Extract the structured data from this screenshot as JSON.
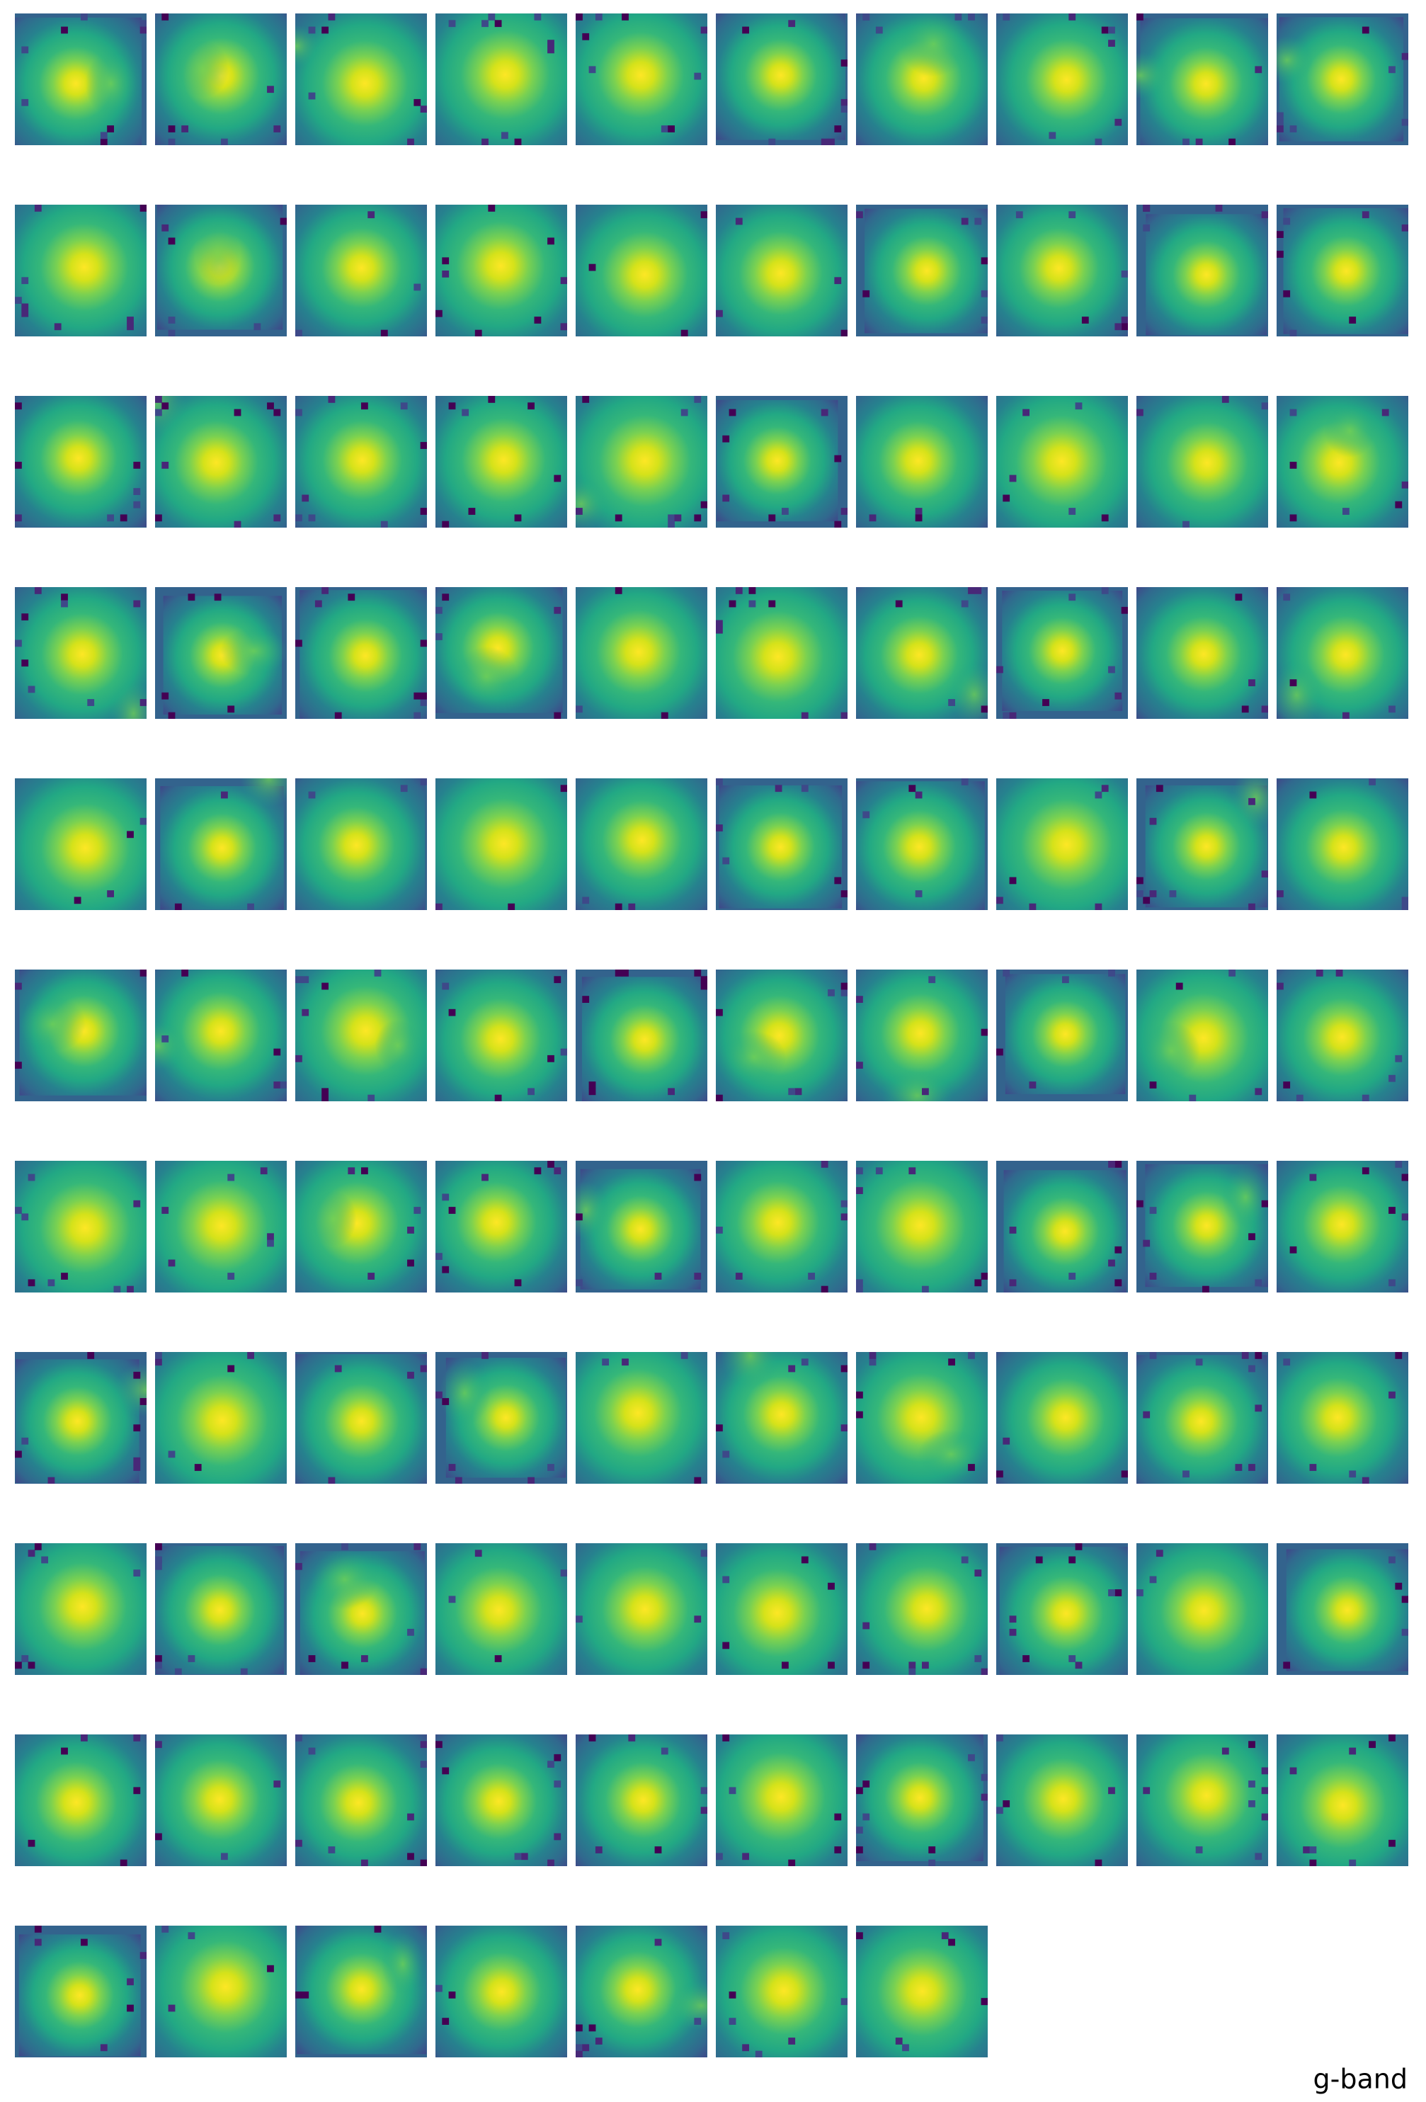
{
  "label": "g-band"
}
